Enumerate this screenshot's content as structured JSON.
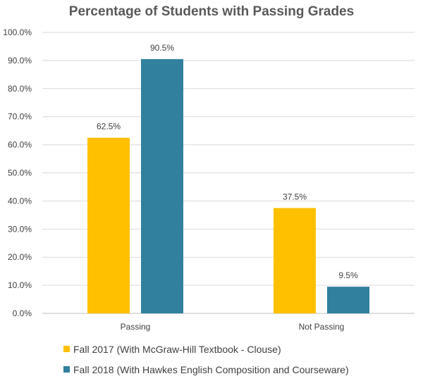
{
  "chart_data": {
    "type": "bar",
    "title": "Percentage of Students with Passing Grades",
    "categories": [
      "Passing",
      "Not Passing"
    ],
    "series": [
      {
        "name": "Fall 2017 (With McGraw-Hill Textbook - Clouse)",
        "color": "#FFC000",
        "values": [
          62.5,
          37.5
        ],
        "labels": [
          "62.5%",
          "37.5%"
        ]
      },
      {
        "name": "Fall 2018 (With Hawkes English Composition and Courseware)",
        "color": "#31809E",
        "values": [
          90.5,
          9.5
        ],
        "labels": [
          "90.5%",
          "9.5%"
        ]
      }
    ],
    "ylim": [
      0,
      100
    ],
    "yticks": [
      0,
      10,
      20,
      30,
      40,
      50,
      60,
      70,
      80,
      90,
      100
    ],
    "ytick_labels": [
      "0.0%",
      "10.0%",
      "20.0%",
      "30.0%",
      "40.0%",
      "50.0%",
      "60.0%",
      "70.0%",
      "80.0%",
      "90.0%",
      "100.0%"
    ],
    "xlabel": "",
    "ylabel": "",
    "grid": true,
    "legend_position": "bottom"
  }
}
